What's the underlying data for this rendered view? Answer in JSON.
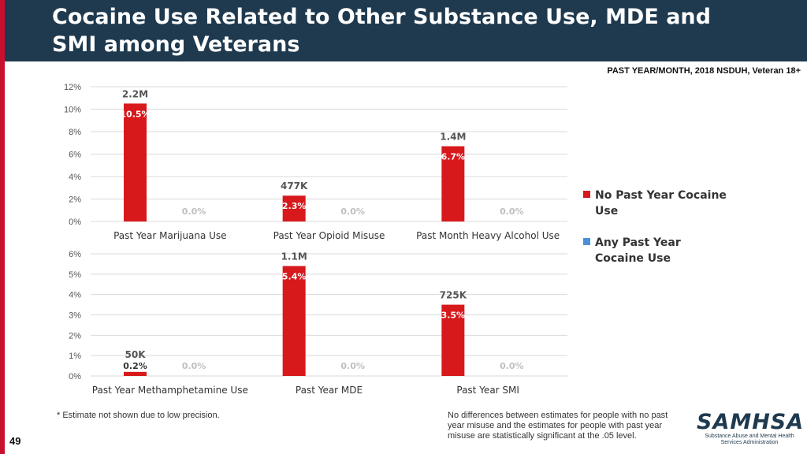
{
  "slide": {
    "title": "Cocaine Use Related to Other Substance Use, MDE and SMI among Veterans",
    "source": "PAST YEAR/MONTH, 2018 NSDUH, Veteran 18+",
    "footnote": "* Estimate not shown due to low precision.",
    "significance_note": "No differences between estimates for people with no past year misuse and the estimates for people with past year misuse are statistically significant at the .05 level.",
    "page_number": "49",
    "logo_text": "SAMHSA",
    "logo_subtitle": "Substance Abuse and Mental Health Services Administration"
  },
  "legend": [
    {
      "label": "No Past Year Cocaine Use",
      "color": "#d7191c"
    },
    {
      "label": "Any Past Year Cocaine Use",
      "color": "#4a90d9"
    }
  ],
  "chart_data": [
    {
      "type": "bar",
      "categories": [
        "Past Year Marijuana Use",
        "Past Year Opioid Misuse",
        "Past Month Heavy Alcohol Use"
      ],
      "series": [
        {
          "name": "No Past Year Cocaine Use",
          "values": [
            10.5,
            2.3,
            6.7
          ],
          "labels": [
            "10.5%",
            "2.3%",
            "6.7%"
          ],
          "counts": [
            "2.2M",
            "477K",
            "1.4M"
          ]
        },
        {
          "name": "Any Past Year Cocaine Use",
          "values": [
            0,
            0,
            0
          ],
          "labels": [
            "0.0%",
            "0.0%",
            "0.0%"
          ]
        }
      ],
      "yticks": [
        "0%",
        "2%",
        "4%",
        "6%",
        "8%",
        "10%",
        "12%"
      ],
      "ylim": [
        0,
        12
      ]
    },
    {
      "type": "bar",
      "categories": [
        "Past Year Methamphetamine Use",
        "Past Year MDE",
        "Past Year SMI"
      ],
      "series": [
        {
          "name": "No Past Year Cocaine Use",
          "values": [
            0.2,
            5.4,
            3.5
          ],
          "labels": [
            "0.2%",
            "5.4%",
            "3.5%"
          ],
          "counts": [
            "50K",
            "1.1M",
            "725K"
          ]
        },
        {
          "name": "Any Past Year Cocaine Use",
          "values": [
            0,
            0,
            0
          ],
          "labels": [
            "0.0%",
            "0.0%",
            "0.0%"
          ]
        }
      ],
      "yticks": [
        "0%",
        "1%",
        "2%",
        "3%",
        "4%",
        "5%",
        "6%"
      ],
      "ylim": [
        0,
        6
      ]
    }
  ]
}
